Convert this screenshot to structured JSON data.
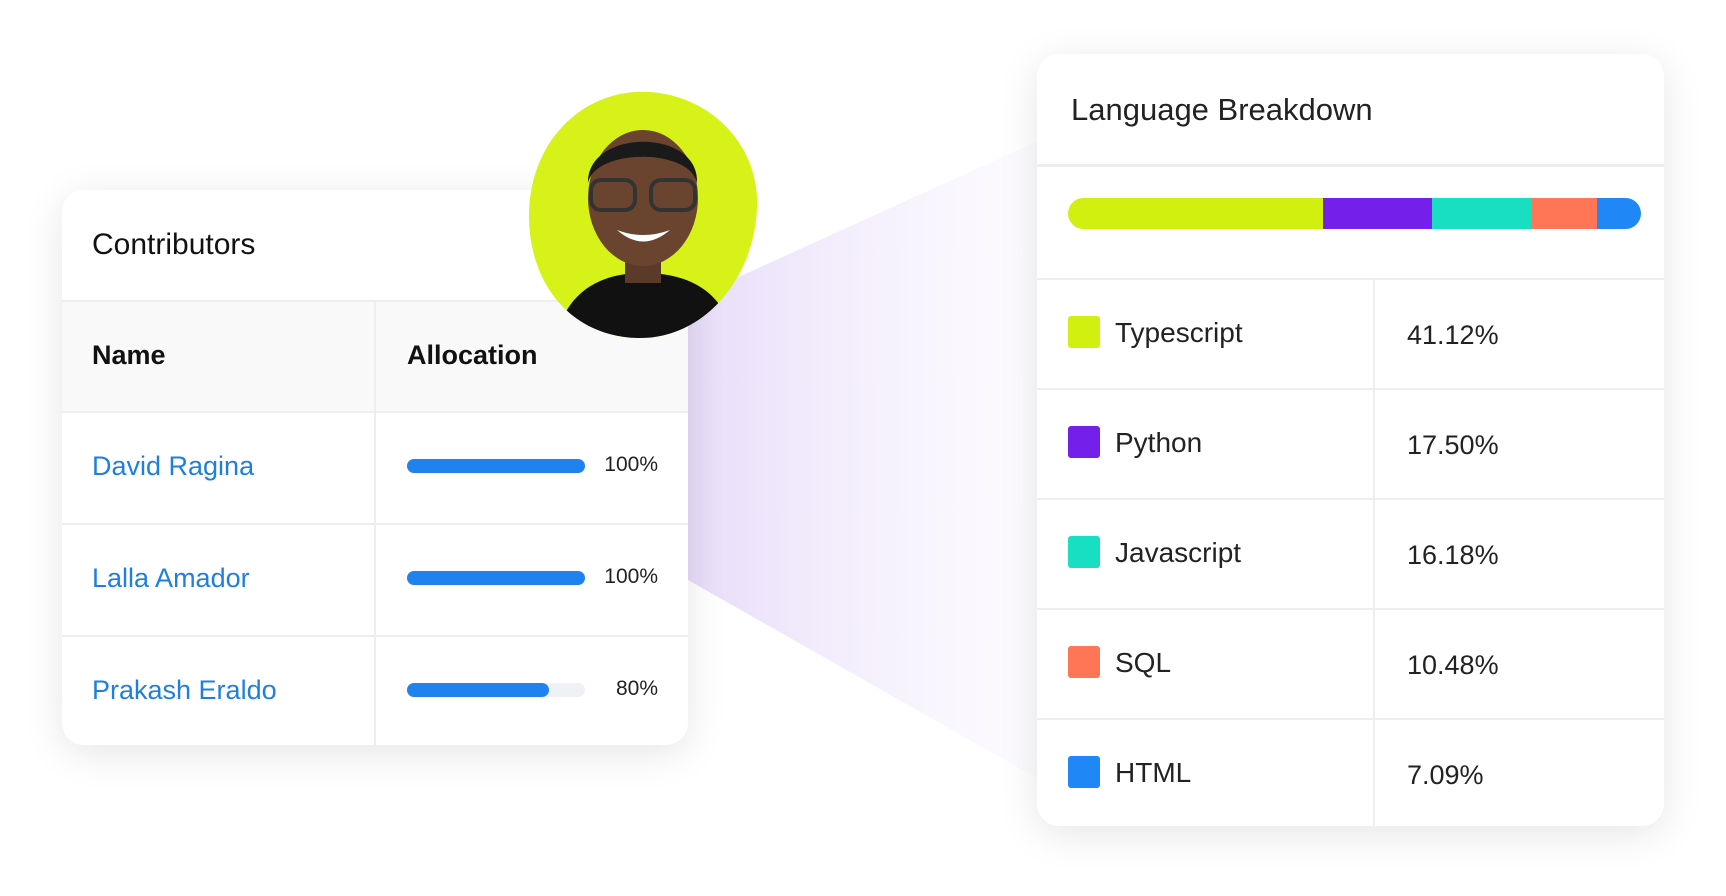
{
  "contributors": {
    "title": "Contributors",
    "columns": [
      "Name",
      "Allocation"
    ],
    "rows": [
      {
        "name": "David Ragina",
        "allocation": {
          "value": 100,
          "label": "100%"
        }
      },
      {
        "name": "Lalla Amador",
        "allocation": {
          "value": 100,
          "label": "100%"
        }
      },
      {
        "name": "Prakash Eraldo",
        "allocation": {
          "value": 80,
          "label": "80%"
        }
      }
    ]
  },
  "language_breakdown": {
    "title": "Language Breakdown",
    "languages": [
      {
        "name": "Typescript",
        "color": "#d2f00f",
        "share": {
          "value": 41.12,
          "label": "41.12%"
        }
      },
      {
        "name": "Python",
        "color": "#7420ea",
        "share": {
          "value": 17.5,
          "label": "17.50%"
        }
      },
      {
        "name": "Javascript",
        "color": "#18dfc2",
        "share": {
          "value": 16.18,
          "label": "16.18%"
        }
      },
      {
        "name": "SQL",
        "color": "#ff7656",
        "share": {
          "value": 10.48,
          "label": "10.48%"
        }
      },
      {
        "name": "HTML",
        "color": "#1f88f6",
        "share": {
          "value": 7.09,
          "label": "7.09%"
        }
      }
    ]
  }
}
